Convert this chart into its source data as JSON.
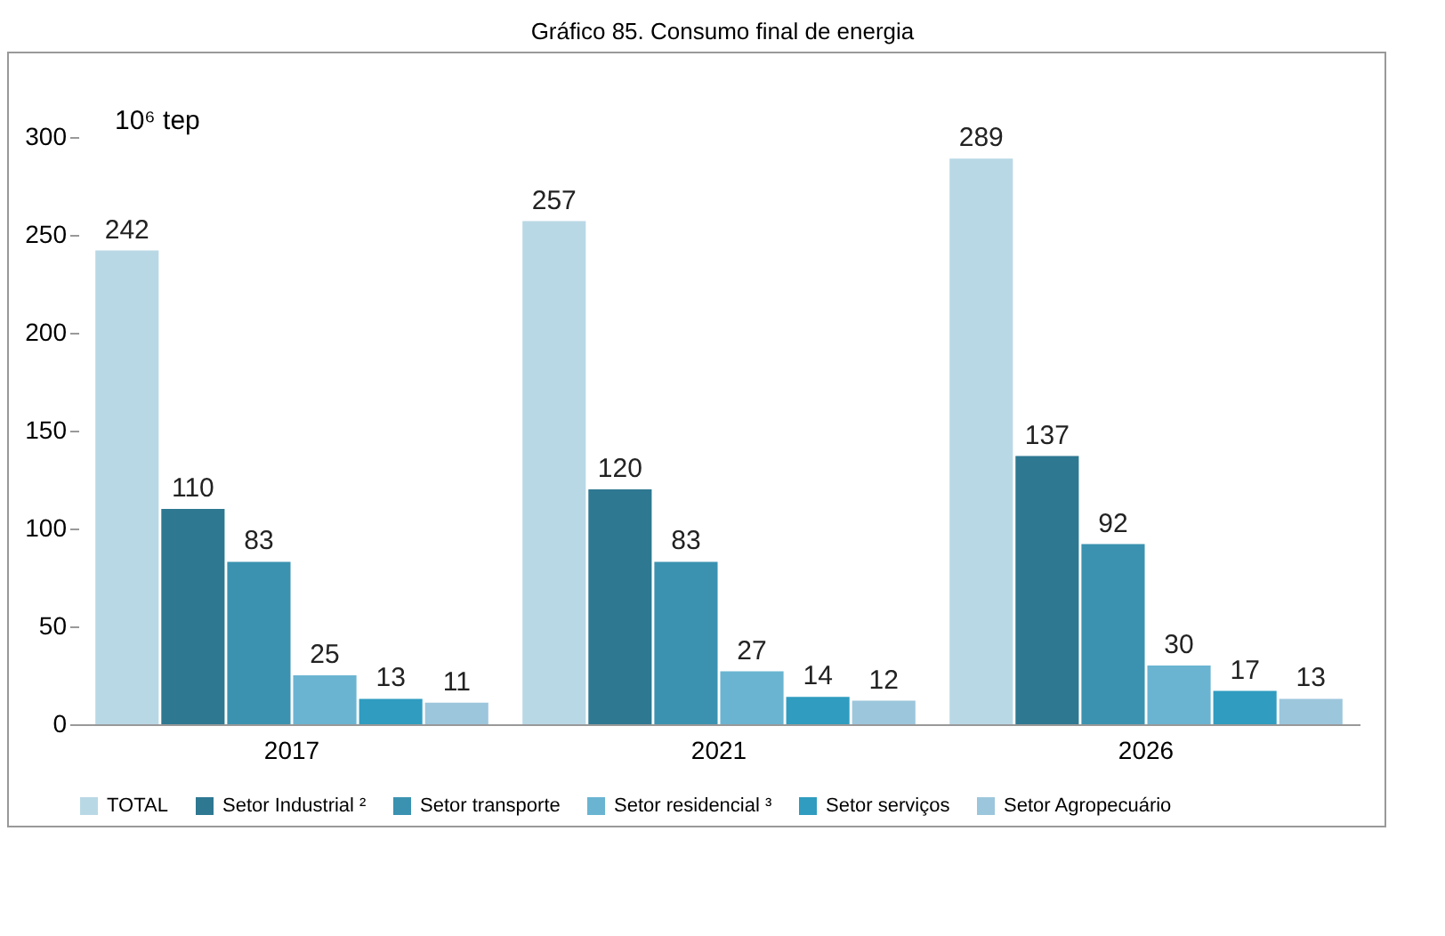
{
  "chart_data": {
    "type": "bar",
    "title": "Gráfico 85. Consumo final de energia",
    "ylabel": "10⁶ tep",
    "categories": [
      "2017",
      "2021",
      "2026"
    ],
    "series": [
      {
        "name": "TOTAL",
        "color": "#b9d8e6",
        "values": [
          242,
          257,
          289
        ]
      },
      {
        "name": "Setor Industrial ²",
        "color": "#2e7891",
        "values": [
          110,
          120,
          137
        ]
      },
      {
        "name": "Setor transporte",
        "color": "#3a92b0",
        "values": [
          83,
          83,
          92
        ]
      },
      {
        "name": "Setor residencial ³",
        "color": "#6ab4d2",
        "values": [
          25,
          27,
          30
        ]
      },
      {
        "name": "Setor serviços",
        "color": "#2f9cc0",
        "values": [
          13,
          14,
          17
        ]
      },
      {
        "name": "Setor Agropecuário",
        "color": "#9cc6dc",
        "values": [
          11,
          12,
          13
        ]
      }
    ],
    "ylim": [
      0,
      300
    ],
    "yticks": [
      0,
      50,
      100,
      150,
      200,
      250,
      300
    ],
    "data_labels": true,
    "legend": "bottom",
    "grid": false
  }
}
